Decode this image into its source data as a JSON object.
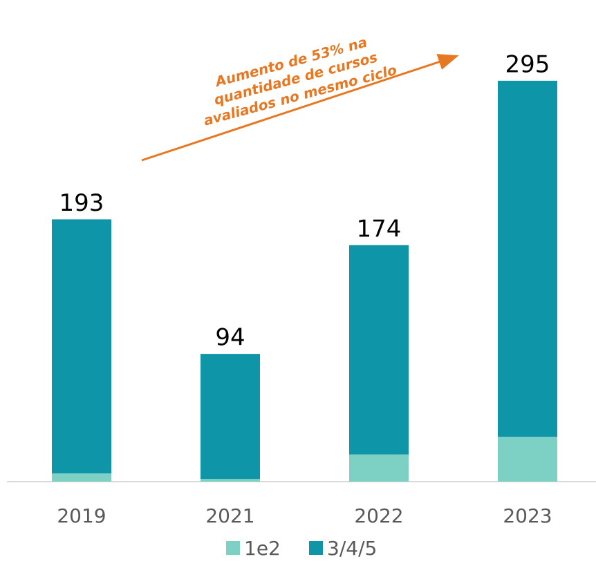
{
  "chart_data": {
    "type": "stacked_bar",
    "categories": [
      "2019",
      "2021",
      "2022",
      "2023"
    ],
    "series": [
      {
        "name": "1e2",
        "color": "#7dd0c4",
        "values": [
          6,
          2,
          20,
          33
        ]
      },
      {
        "name": "3/4/5",
        "color": "#0e95a8",
        "values": [
          187,
          92,
          154,
          262
        ]
      }
    ],
    "totals": [
      193,
      94,
      174,
      295
    ],
    "ylim": [
      0,
      300
    ],
    "annotation": {
      "lines": [
        "Aumento de 53% na",
        "quantidade de cursos",
        "avaliados no mesmo ciclo"
      ],
      "color": "#e87722"
    }
  }
}
